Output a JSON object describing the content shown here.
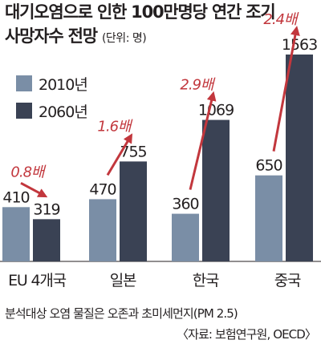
{
  "title_line1": "대기오염으로 인한 100만명당 연간 조기",
  "title_line2": "사망자수 전망",
  "unit": "(단위: 명)",
  "colors": {
    "series_2010": "#7a8ea6",
    "series_2060": "#3a4254",
    "ratio": "#c2373d"
  },
  "footnote": "분석대상 오염 물질은 오존과 초미세먼지(PM 2.5)",
  "source": "〈자료: 보험연구원, OECD〉",
  "chart_data": {
    "type": "bar",
    "categories": [
      "EU 4개국",
      "일본",
      "한국",
      "중국"
    ],
    "series": [
      {
        "name": "2010년",
        "values": [
          410,
          470,
          360,
          650
        ]
      },
      {
        "name": "2060년",
        "values": [
          319,
          755,
          1069,
          1563
        ]
      }
    ],
    "annotations": [
      "0.8배",
      "1.6배",
      "2.9배",
      "2.4배"
    ],
    "title": "대기오염으로 인한 100만명당 연간 조기 사망자수 전망",
    "ylim": [
      0,
      1563
    ],
    "grid": false,
    "legend": "top-left"
  }
}
